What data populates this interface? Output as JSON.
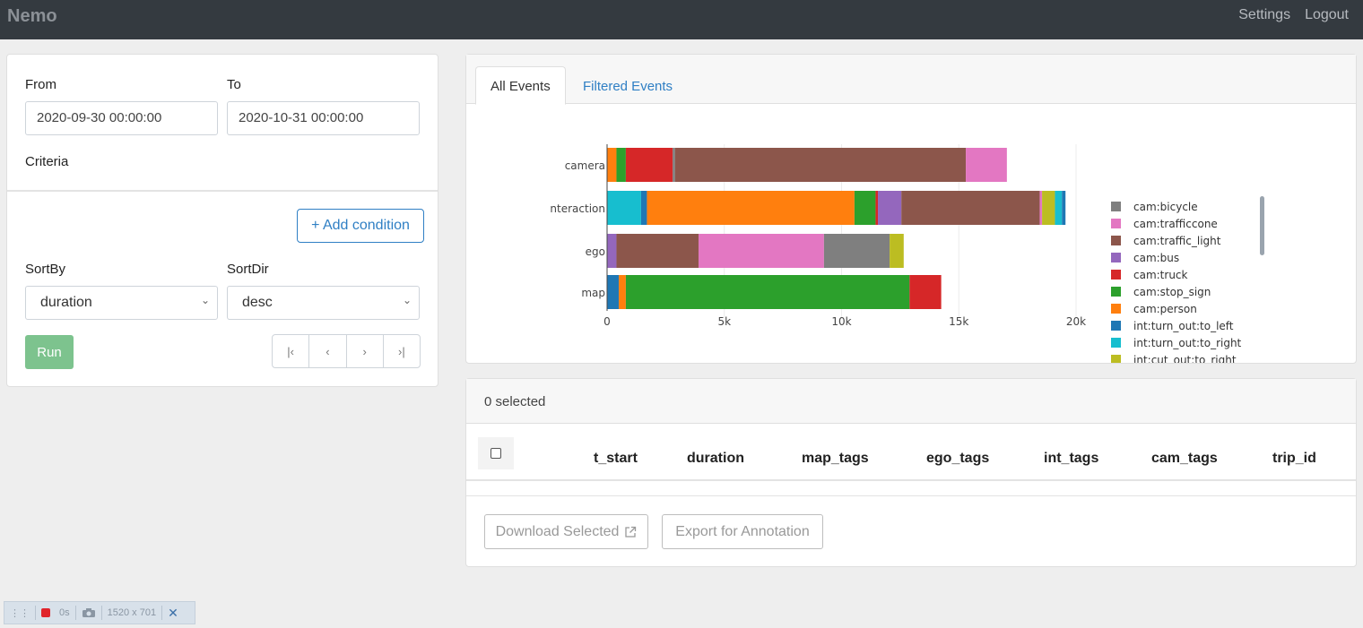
{
  "nav": {
    "brand": "Nemo",
    "settings": "Settings",
    "logout": "Logout"
  },
  "form": {
    "from_label": "From",
    "to_label": "To",
    "from_value": "2020-09-30 00:00:00",
    "to_value": "2020-10-31 00:00:00",
    "criteria_label": "Criteria",
    "add_condition": "+ Add condition",
    "sortby_label": "SortBy",
    "sortdir_label": "SortDir",
    "sortby_value": "duration",
    "sortdir_value": "desc",
    "run": "Run",
    "pager": [
      "|‹",
      "‹",
      "›",
      "›|"
    ]
  },
  "tabs": {
    "all": "All Events",
    "filtered": "Filtered Events"
  },
  "chart_data": {
    "type": "bar",
    "orientation": "horizontal",
    "stacked": true,
    "categories": [
      "camera",
      "nteraction",
      "ego",
      "map"
    ],
    "xlim": [
      0,
      20000
    ],
    "xticks": [
      "0",
      "5k",
      "10k",
      "15k",
      "20k"
    ],
    "tick_values": [
      0,
      5000,
      10000,
      15000,
      20000
    ],
    "segments": [
      [
        {
          "tag": "cam:person",
          "value": 400
        },
        {
          "tag": "cam:stop_sign",
          "value": 400
        },
        {
          "tag": "cam:truck",
          "value": 2000
        },
        {
          "tag": "cam:bicycle",
          "value": 100
        },
        {
          "tag": "cam:traffic_light",
          "value": 12400
        },
        {
          "tag": "cam:trafficcone",
          "value": 1750
        }
      ],
      [
        {
          "tag": "int:turn_out:to_right",
          "value": 1450
        },
        {
          "tag": "int:turn_out:to_left",
          "value": 250
        },
        {
          "tag": "cam:person",
          "value": 8850
        },
        {
          "tag": "cam:stop_sign",
          "value": 900
        },
        {
          "tag": "cam:truck",
          "value": 100
        },
        {
          "tag": "cam:bus",
          "value": 1000
        },
        {
          "tag": "cam:traffic_light",
          "value": 5900
        },
        {
          "tag": "cam:trafficcone",
          "value": 100
        },
        {
          "tag": "int:cut_out:to_right",
          "value": 550
        },
        {
          "tag": "int:turn_out:to_right",
          "value": 300
        },
        {
          "tag": "int:turn_out:to_left",
          "value": 150
        }
      ],
      [
        {
          "tag": "cam:bus",
          "value": 400
        },
        {
          "tag": "cam:traffic_light",
          "value": 3500
        },
        {
          "tag": "cam:trafficcone",
          "value": 5350
        },
        {
          "tag": "cam:bicycle",
          "value": 2800
        },
        {
          "tag": "int:cut_out:to_right",
          "value": 600
        }
      ],
      [
        {
          "tag": "int:turn_out:to_left",
          "value": 500
        },
        {
          "tag": "cam:person",
          "value": 300
        },
        {
          "tag": "cam:stop_sign",
          "value": 12100
        },
        {
          "tag": "cam:truck",
          "value": 1350
        }
      ]
    ],
    "legend": [
      {
        "label": "cam:bicycle",
        "color": "#7f7f7f"
      },
      {
        "label": "cam:trafficcone",
        "color": "#e377c2"
      },
      {
        "label": "cam:traffic_light",
        "color": "#8c564b"
      },
      {
        "label": "cam:bus",
        "color": "#9467bd"
      },
      {
        "label": "cam:truck",
        "color": "#d62728"
      },
      {
        "label": "cam:stop_sign",
        "color": "#2ca02c"
      },
      {
        "label": "cam:person",
        "color": "#ff7f0e"
      },
      {
        "label": "int:turn_out:to_left",
        "color": "#1f77b4"
      },
      {
        "label": "int:turn_out:to_right",
        "color": "#17becf"
      },
      {
        "label": "int:cut_out:to_right",
        "color": "#bcbd22"
      }
    ]
  },
  "table": {
    "selected_text": "0 selected",
    "columns": [
      "t_start",
      "duration",
      "map_tags",
      "ego_tags",
      "int_tags",
      "cam_tags",
      "trip_id"
    ],
    "download": "Download Selected",
    "export": "Export for Annotation"
  },
  "recorder": {
    "time": "0s",
    "size": "1520 x 701"
  }
}
